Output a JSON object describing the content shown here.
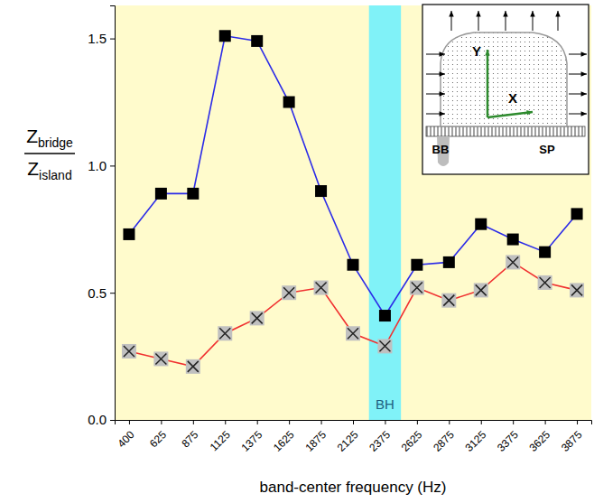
{
  "chart_data": {
    "type": "line",
    "ylabel": {
      "numerator": "Z",
      "numerator_sub": "bridge",
      "denominator": "Z",
      "denominator_sub": "island"
    },
    "xlabel": "band-center frequency (Hz)",
    "categories": [
      "400",
      "625",
      "875",
      "1125",
      "1375",
      "1625",
      "1875",
      "2125",
      "2375",
      "2625",
      "2875",
      "3125",
      "3375",
      "3625",
      "3875"
    ],
    "ylim": [
      0,
      1.63
    ],
    "yticks": [
      {
        "value": 0,
        "label": "0.0"
      },
      0.5,
      {
        "value": 1,
        "label": "1.0"
      },
      1.5
    ],
    "series": [
      {
        "color": "#2b2be8",
        "marker": "square",
        "values": [
          0.73,
          0.89,
          0.89,
          1.51,
          1.49,
          1.25,
          0.9,
          0.61,
          0.41,
          0.61,
          0.62,
          0.77,
          0.71,
          0.66,
          0.81
        ]
      },
      {
        "color": "#f03030",
        "marker": "x",
        "values": [
          0.27,
          0.24,
          0.21,
          0.34,
          0.4,
          0.5,
          0.52,
          0.34,
          0.29,
          0.52,
          0.47,
          0.51,
          0.62,
          0.54,
          0.51
        ]
      }
    ],
    "annotations": [
      {
        "text": "BH",
        "category_index": 8,
        "color": "#80f2f8"
      }
    ],
    "inset": {
      "labels": [
        "Y",
        "X",
        "BB",
        "SP"
      ]
    },
    "grid": false
  }
}
